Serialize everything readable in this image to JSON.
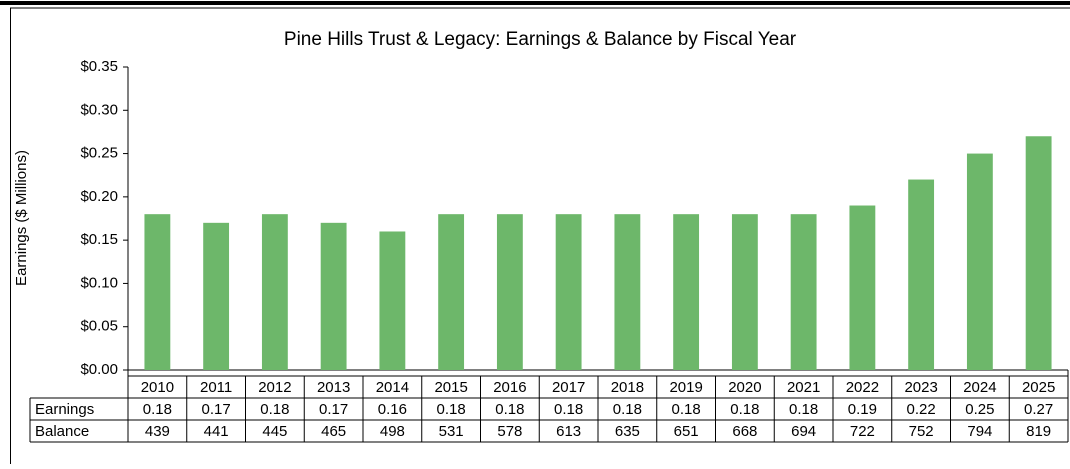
{
  "chart_data": {
    "type": "bar",
    "title": "Pine Hills Trust & Legacy: Earnings & Balance by Fiscal Year",
    "y_label": "Earnings ($ Millions)",
    "categories": [
      "2010",
      "2011",
      "2012",
      "2013",
      "2014",
      "2015",
      "2016",
      "2017",
      "2018",
      "2019",
      "2020",
      "2021",
      "2022",
      "2023",
      "2024",
      "2025"
    ],
    "series": [
      {
        "name": "Earnings",
        "color": "#6db76a",
        "values": [
          0.18,
          0.17,
          0.18,
          0.17,
          0.16,
          0.18,
          0.18,
          0.18,
          0.18,
          0.18,
          0.18,
          0.18,
          0.19,
          0.22,
          0.25,
          0.27
        ]
      }
    ],
    "table_rows": [
      {
        "name": "Balance",
        "values": [
          439,
          441,
          445,
          465,
          498,
          531,
          578,
          613,
          635,
          651,
          668,
          694,
          722,
          752,
          794,
          819
        ]
      }
    ],
    "ylim": [
      0,
      0.35
    ],
    "yticks": [
      {
        "value": 0,
        "label": "$0.00"
      },
      {
        "value": 0.05,
        "label": "$0.05"
      },
      {
        "value": 0.1,
        "label": "$0.10"
      },
      {
        "value": 0.15,
        "label": "$0.15"
      },
      {
        "value": 0.2,
        "label": "$0.20"
      },
      {
        "value": 0.25,
        "label": "$0.25"
      },
      {
        "value": 0.3,
        "label": "$0.30"
      },
      {
        "value": 0.35,
        "label": "$0.35"
      }
    ]
  }
}
